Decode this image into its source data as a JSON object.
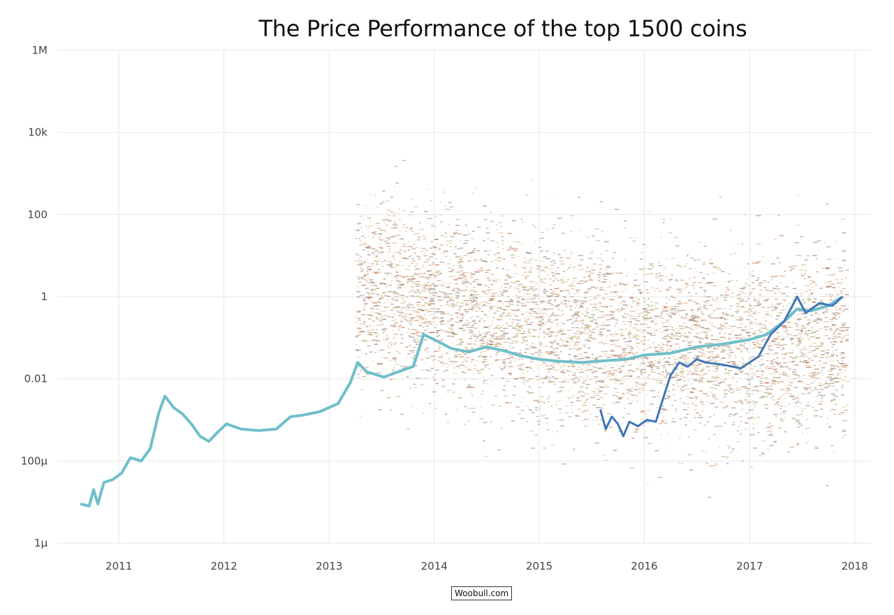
{
  "chart_data": {
    "type": "line",
    "title": "The Price Performance of the top 1500 coins",
    "xlabel": "",
    "ylabel": "",
    "y_scale": "log",
    "grid": true,
    "ylim": [
      1e-06,
      1000000
    ],
    "xlim": [
      "2010-06-01",
      "2018-03-01"
    ],
    "y_tick_labels": [
      {
        "value": 1000000,
        "label": "1M"
      },
      {
        "value": 10000,
        "label": "10k"
      },
      {
        "value": 100,
        "label": "100"
      },
      {
        "value": 1,
        "label": "1"
      },
      {
        "value": 0.01,
        "label": "0.01"
      },
      {
        "value": 0.0001,
        "label": "100µ"
      },
      {
        "value": 1e-06,
        "label": "1µ"
      }
    ],
    "x_tick_labels": [
      {
        "value": "2011-01-01",
        "label": "2011"
      },
      {
        "value": "2012-01-01",
        "label": "2012"
      },
      {
        "value": "2013-01-01",
        "label": "2013"
      },
      {
        "value": "2014-01-01",
        "label": "2014"
      },
      {
        "value": "2015-01-01",
        "label": "2015"
      },
      {
        "value": "2016-01-01",
        "label": "2016"
      },
      {
        "value": "2017-01-01",
        "label": "2017"
      },
      {
        "value": "2018-01-01",
        "label": "2018"
      }
    ],
    "series": [
      {
        "color": "#6fbfca",
        "points": [
          [
            "2010-08-20",
            9e-06
          ],
          [
            "2010-09-20",
            8e-06
          ],
          [
            "2010-10-05",
            2e-05
          ],
          [
            "2010-10-20",
            9e-06
          ],
          [
            "2010-11-10",
            3e-05
          ],
          [
            "2010-12-10",
            3.5e-05
          ],
          [
            "2011-01-10",
            5e-05
          ],
          [
            "2011-02-10",
            0.00012
          ],
          [
            "2011-03-20",
            0.0001
          ],
          [
            "2011-04-20",
            0.0002
          ],
          [
            "2011-05-20",
            0.0015
          ],
          [
            "2011-06-10",
            0.0038
          ],
          [
            "2011-07-10",
            0.002
          ],
          [
            "2011-08-10",
            0.0014
          ],
          [
            "2011-09-10",
            0.0008
          ],
          [
            "2011-10-10",
            0.0004
          ],
          [
            "2011-11-10",
            0.0003
          ],
          [
            "2011-12-10",
            0.0005
          ],
          [
            "2012-01-10",
            0.0008
          ],
          [
            "2012-03-01",
            0.0006
          ],
          [
            "2012-05-01",
            0.00055
          ],
          [
            "2012-07-01",
            0.0006
          ],
          [
            "2012-08-20",
            0.0012
          ],
          [
            "2012-10-01",
            0.0013
          ],
          [
            "2012-12-01",
            0.0016
          ],
          [
            "2013-02-01",
            0.0025
          ],
          [
            "2013-03-15",
            0.008
          ],
          [
            "2013-04-10",
            0.025
          ],
          [
            "2013-05-10",
            0.015
          ],
          [
            "2013-07-10",
            0.011
          ],
          [
            "2013-09-10",
            0.016
          ],
          [
            "2013-10-20",
            0.02
          ],
          [
            "2013-11-25",
            0.12
          ],
          [
            "2014-01-15",
            0.08
          ],
          [
            "2014-03-01",
            0.055
          ],
          [
            "2014-05-01",
            0.045
          ],
          [
            "2014-07-01",
            0.06
          ],
          [
            "2014-09-01",
            0.048
          ],
          [
            "2014-11-01",
            0.036
          ],
          [
            "2015-01-01",
            0.03
          ],
          [
            "2015-03-01",
            0.027
          ],
          [
            "2015-06-01",
            0.025
          ],
          [
            "2015-09-01",
            0.028
          ],
          [
            "2015-11-01",
            0.03
          ],
          [
            "2016-01-01",
            0.038
          ],
          [
            "2016-04-01",
            0.042
          ],
          [
            "2016-07-01",
            0.06
          ],
          [
            "2016-10-01",
            0.07
          ],
          [
            "2017-01-01",
            0.09
          ],
          [
            "2017-03-01",
            0.12
          ],
          [
            "2017-05-01",
            0.25
          ],
          [
            "2017-06-15",
            0.5
          ],
          [
            "2017-08-01",
            0.45
          ],
          [
            "2017-10-01",
            0.6
          ],
          [
            "2017-11-20",
            1.0
          ]
        ]
      },
      {
        "color": "#3f76b5",
        "points": [
          [
            "2015-08-01",
            0.0018
          ],
          [
            "2015-08-20",
            0.0006
          ],
          [
            "2015-09-10",
            0.0012
          ],
          [
            "2015-10-01",
            0.0008
          ],
          [
            "2015-10-20",
            0.0004
          ],
          [
            "2015-11-10",
            0.0009
          ],
          [
            "2015-12-10",
            0.0007
          ],
          [
            "2016-01-10",
            0.001
          ],
          [
            "2016-02-10",
            0.0009
          ],
          [
            "2016-03-10",
            0.004
          ],
          [
            "2016-04-01",
            0.012
          ],
          [
            "2016-05-01",
            0.025
          ],
          [
            "2016-06-01",
            0.02
          ],
          [
            "2016-07-01",
            0.03
          ],
          [
            "2016-08-01",
            0.025
          ],
          [
            "2016-10-01",
            0.022
          ],
          [
            "2016-12-01",
            0.018
          ],
          [
            "2017-01-01",
            0.025
          ],
          [
            "2017-02-01",
            0.035
          ],
          [
            "2017-03-15",
            0.12
          ],
          [
            "2017-05-01",
            0.25
          ],
          [
            "2017-06-15",
            1.0
          ],
          [
            "2017-07-15",
            0.4
          ],
          [
            "2017-09-01",
            0.7
          ],
          [
            "2017-10-15",
            0.6
          ],
          [
            "2017-11-20",
            1.0
          ]
        ]
      }
    ],
    "scatter_cloud": {
      "description": "dense cloud of price traces for other coins",
      "palette": [
        "#a0523a",
        "#c9774f",
        "#e0a779",
        "#b89b6a",
        "#9a8f3d",
        "#8a7a7a",
        "#d8c89a",
        "#7a6f70"
      ],
      "start": "2013-04-01",
      "end": "2017-12-01"
    }
  },
  "footer": {
    "credit": "Woobull.com"
  }
}
